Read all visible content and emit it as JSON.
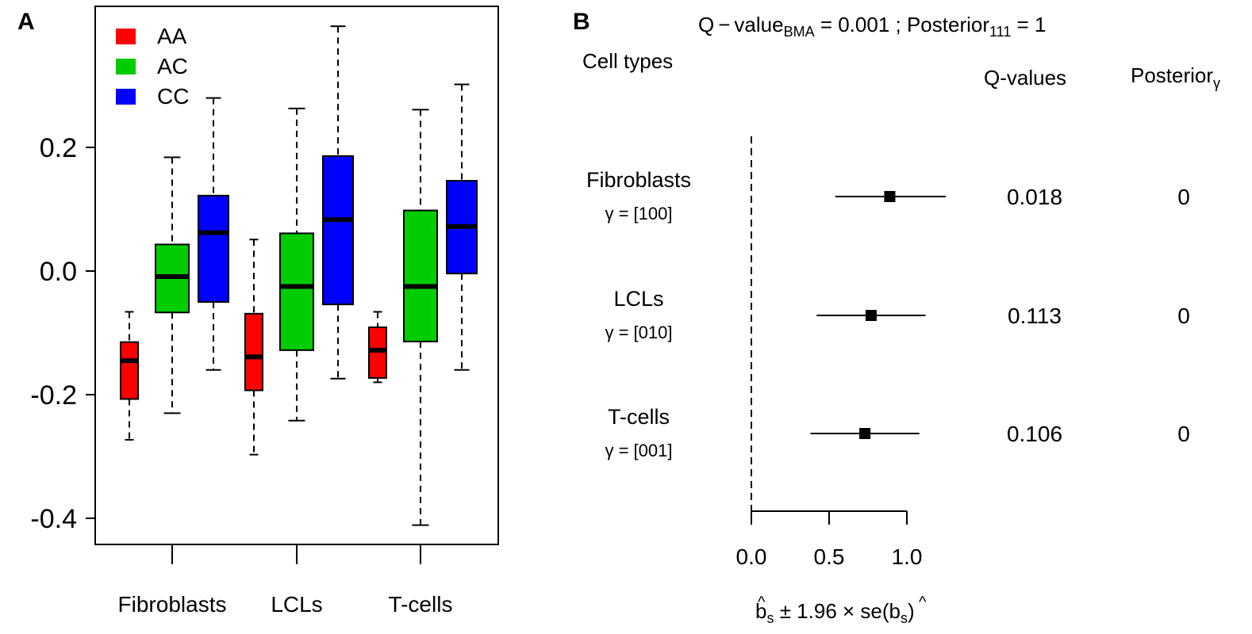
{
  "chart_data": [
    {
      "panel": "A",
      "type": "box",
      "ylim": [
        -0.44,
        0.43
      ],
      "yticks": [
        0.2,
        0.0,
        -0.2,
        -0.4
      ],
      "ytick_labels": [
        "0.2",
        "0.0",
        "-0.2",
        "-0.4"
      ],
      "categories": [
        "Fibroblasts",
        "LCLs",
        "T-cells"
      ],
      "legend": {
        "position": "top-left",
        "entries": [
          "AA",
          "AC",
          "CC"
        ]
      },
      "colors": {
        "AA": "#ff0000",
        "AC": "#00cc00",
        "CC": "#0000ff"
      },
      "series": [
        {
          "name": "AA",
          "boxes": [
            {
              "min": -0.273,
              "q1": -0.207,
              "median": -0.145,
              "q3": -0.115,
              "max": -0.066
            },
            {
              "min": -0.297,
              "q1": -0.193,
              "median": -0.139,
              "q3": -0.069,
              "max": 0.051
            },
            {
              "min": -0.18,
              "q1": -0.173,
              "median": -0.128,
              "q3": -0.091,
              "max": -0.066
            }
          ]
        },
        {
          "name": "AC",
          "boxes": [
            {
              "min": -0.23,
              "q1": -0.067,
              "median": -0.009,
              "q3": 0.043,
              "max": 0.184
            },
            {
              "min": -0.242,
              "q1": -0.128,
              "median": -0.025,
              "q3": 0.061,
              "max": 0.263
            },
            {
              "min": -0.411,
              "q1": -0.114,
              "median": -0.025,
              "q3": 0.098,
              "max": 0.261
            }
          ]
        },
        {
          "name": "CC",
          "boxes": [
            {
              "min": -0.16,
              "q1": -0.05,
              "median": 0.062,
              "q3": 0.122,
              "max": 0.28
            },
            {
              "min": -0.174,
              "q1": -0.054,
              "median": 0.083,
              "q3": 0.186,
              "max": 0.396
            },
            {
              "min": -0.16,
              "q1": -0.004,
              "median": 0.072,
              "q3": 0.146,
              "max": 0.302
            }
          ]
        }
      ]
    },
    {
      "panel": "B",
      "type": "forest",
      "title_parts": {
        "q": "Q",
        "minus": "−",
        "value": "value",
        "sub_bma": "BMA",
        "eq1": " = 0.001 ; Posterior",
        "sub_111": "111",
        "eq2": " = 1"
      },
      "header_celltypes": "Cell types",
      "header_qvalues": "Q-values",
      "header_posterior": "Posterior",
      "header_posterior_sub": "γ",
      "xlim": [
        0,
        1.0
      ],
      "xticks": [
        0.0,
        0.5,
        1.0
      ],
      "xtick_labels": [
        "0.0",
        "0.5",
        "1.0"
      ],
      "xlabel_parts": {
        "b": "b",
        "s": "s",
        "mid": " ± 1.96 × se(",
        "b2": "b",
        "s2": "s",
        "close": ")"
      },
      "rows": [
        {
          "name": "Fibroblasts",
          "gamma": "γ = [100]",
          "estimate": 0.89,
          "lower": 0.54,
          "upper": 1.25,
          "qvalue": "0.018",
          "posterior": "0"
        },
        {
          "name": "LCLs",
          "gamma": "γ = [010]",
          "estimate": 0.77,
          "lower": 0.42,
          "upper": 1.12,
          "qvalue": "0.113",
          "posterior": "0"
        },
        {
          "name": "T-cells",
          "gamma": "γ = [001]",
          "estimate": 0.73,
          "lower": 0.38,
          "upper": 1.08,
          "qvalue": "0.106",
          "posterior": "0"
        }
      ]
    }
  ],
  "panel_labels": {
    "a": "A",
    "b": "B"
  }
}
